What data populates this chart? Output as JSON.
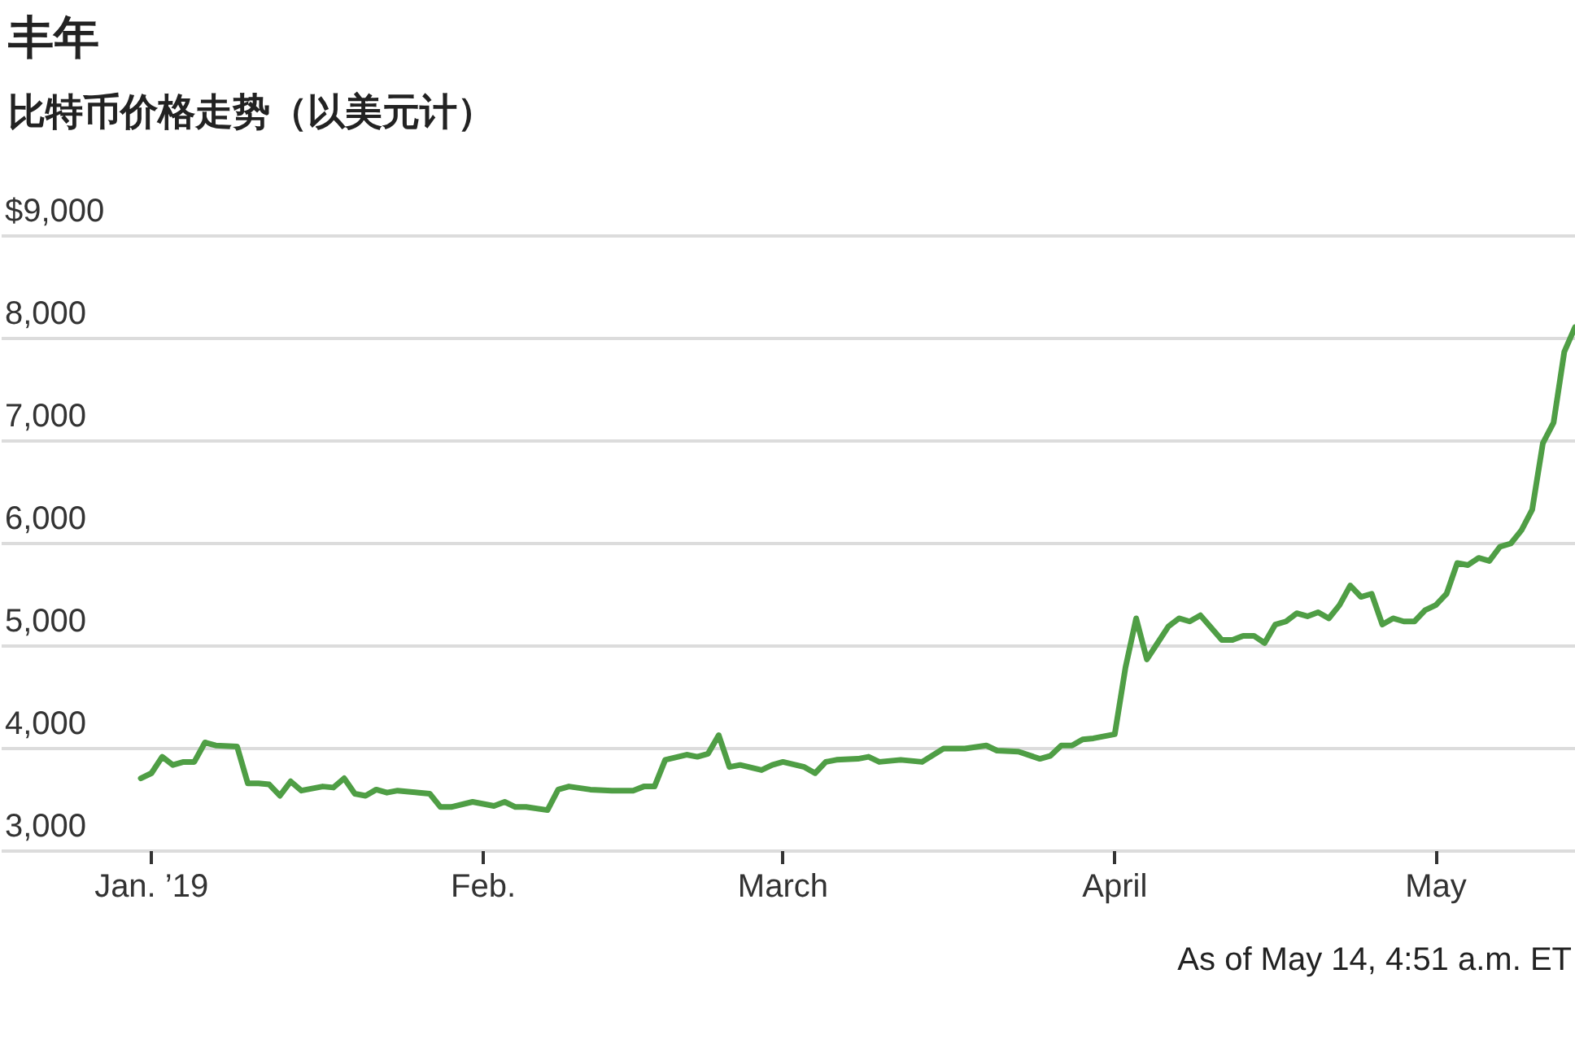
{
  "chart_data": {
    "type": "line",
    "title": "丰年",
    "subtitle": "比特币价格走势（以美元计）",
    "annotations": [
      "As of May 14, 4:51 a.m. ET"
    ],
    "x": [
      "2018-12-31",
      "2019-01-01",
      "2019-01-02",
      "2019-01-03",
      "2019-01-04",
      "2019-01-05",
      "2019-01-06",
      "2019-01-07",
      "2019-01-09",
      "2019-01-10",
      "2019-01-11",
      "2019-01-12",
      "2019-01-13",
      "2019-01-14",
      "2019-01-15",
      "2019-01-17",
      "2019-01-18",
      "2019-01-19",
      "2019-01-20",
      "2019-01-21",
      "2019-01-22",
      "2019-01-23",
      "2019-01-24",
      "2019-01-26",
      "2019-01-27",
      "2019-01-28",
      "2019-01-29",
      "2019-01-31",
      "2019-02-01",
      "2019-02-02",
      "2019-02-03",
      "2019-02-04",
      "2019-02-05",
      "2019-02-07",
      "2019-02-08",
      "2019-02-09",
      "2019-02-11",
      "2019-02-13",
      "2019-02-15",
      "2019-02-16",
      "2019-02-17",
      "2019-02-18",
      "2019-02-20",
      "2019-02-21",
      "2019-02-22",
      "2019-02-23",
      "2019-02-24",
      "2019-02-25",
      "2019-02-27",
      "2019-02-28",
      "2019-03-01",
      "2019-03-03",
      "2019-03-04",
      "2019-03-05",
      "2019-03-06",
      "2019-03-08",
      "2019-03-09",
      "2019-03-10",
      "2019-03-12",
      "2019-03-14",
      "2019-03-16",
      "2019-03-18",
      "2019-03-20",
      "2019-03-21",
      "2019-03-23",
      "2019-03-25",
      "2019-03-26",
      "2019-03-27",
      "2019-03-28",
      "2019-03-29",
      "2019-03-30",
      "2019-04-01",
      "2019-04-02",
      "2019-04-03",
      "2019-04-04",
      "2019-04-05",
      "2019-04-06",
      "2019-04-07",
      "2019-04-08",
      "2019-04-09",
      "2019-04-11",
      "2019-04-12",
      "2019-04-13",
      "2019-04-14",
      "2019-04-15",
      "2019-04-16",
      "2019-04-17",
      "2019-04-18",
      "2019-04-19",
      "2019-04-20",
      "2019-04-21",
      "2019-04-22",
      "2019-04-23",
      "2019-04-24",
      "2019-04-25",
      "2019-04-26",
      "2019-04-27",
      "2019-04-28",
      "2019-04-29",
      "2019-04-30",
      "2019-05-01",
      "2019-05-02",
      "2019-05-03",
      "2019-05-04",
      "2019-05-05",
      "2019-05-06",
      "2019-05-07",
      "2019-05-08",
      "2019-05-09",
      "2019-05-10",
      "2019-05-11",
      "2019-05-12",
      "2019-05-13",
      "2019-05-14"
    ],
    "values": [
      3710,
      3760,
      3920,
      3840,
      3870,
      3870,
      4060,
      4030,
      4020,
      3660,
      3660,
      3650,
      3540,
      3680,
      3590,
      3630,
      3620,
      3710,
      3560,
      3540,
      3600,
      3570,
      3590,
      3570,
      3560,
      3430,
      3430,
      3480,
      3460,
      3440,
      3480,
      3430,
      3430,
      3400,
      3600,
      3630,
      3600,
      3590,
      3590,
      3630,
      3630,
      3890,
      3940,
      3920,
      3950,
      4130,
      3820,
      3840,
      3790,
      3840,
      3870,
      3820,
      3760,
      3870,
      3890,
      3900,
      3920,
      3870,
      3890,
      3870,
      4000,
      4000,
      4030,
      3980,
      3970,
      3900,
      3930,
      4030,
      4030,
      4090,
      4100,
      4140,
      4790,
      5270,
      4870,
      5030,
      5190,
      5270,
      5240,
      5300,
      5060,
      5060,
      5100,
      5100,
      5030,
      5210,
      5240,
      5320,
      5290,
      5330,
      5270,
      5400,
      5590,
      5480,
      5510,
      5210,
      5270,
      5240,
      5240,
      5350,
      5400,
      5510,
      5810,
      5790,
      5860,
      5830,
      5970,
      6000,
      6130,
      6330,
      6980,
      7180,
      7870,
      8110
    ],
    "color": "#4f9e45",
    "xlim": [
      "2018-12-18",
      "2019-05-14"
    ],
    "xticks": [
      {
        "value": "2019-01-01",
        "label": "Jan. ’19"
      },
      {
        "value": "2019-02-01",
        "label": "Feb."
      },
      {
        "value": "2019-03-01",
        "label": "March"
      },
      {
        "value": "2019-04-01",
        "label": "April"
      },
      {
        "value": "2019-05-01",
        "label": "May"
      }
    ],
    "ylim": [
      3000,
      9000
    ],
    "yticks": [
      {
        "value": 3000,
        "label": "3,000"
      },
      {
        "value": 4000,
        "label": "4,000"
      },
      {
        "value": 5000,
        "label": "5,000"
      },
      {
        "value": 6000,
        "label": "6,000"
      },
      {
        "value": 7000,
        "label": "7,000"
      },
      {
        "value": 8000,
        "label": "8,000"
      },
      {
        "value": 9000,
        "label": "$9,000"
      }
    ],
    "grid": "y"
  }
}
